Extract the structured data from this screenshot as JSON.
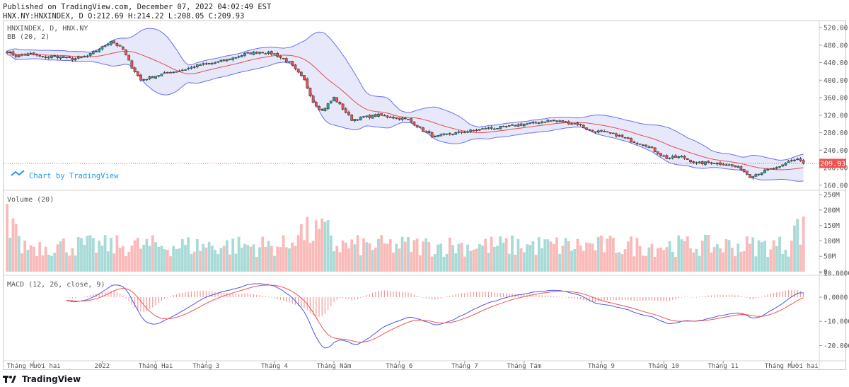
{
  "header": {
    "published": "Published on TradingView.com, December 07, 2022 04:02:49 EST",
    "ohlc": "HNX.NY:HNXINDEX, D O:212.69 H:214.22 L:208.05 C:209.93"
  },
  "legend": {
    "symbol": "HNXINDEX, D, HNX.NY",
    "bb": "BB (20, 2)",
    "volume": "Volume (20)",
    "macd": "MACD (12, 26, close, 9)"
  },
  "watermark": "Chart by TradingView",
  "last_price_label": "209.93",
  "footer": {
    "brand": "TradingView"
  },
  "colors": {
    "up": "#26a69a",
    "down": "#ef5350",
    "bb_band": "#6a6ff0",
    "bb_basis": "#e05050",
    "bb_fill": "#7b7fe0",
    "macd_line": "#4a55e8",
    "signal_line": "#ef5350"
  },
  "chart_data": [
    {
      "type": "candlestick",
      "title": "HNXINDEX, D, HNX.NY",
      "overlay": "Bollinger Bands (20, 2)",
      "ylim": [
        150,
        525
      ],
      "y_ticks": [
        520,
        480,
        440,
        400,
        360,
        320,
        280,
        240,
        200,
        160
      ],
      "x_ticks": [
        "Tháng Mười hai",
        "2022",
        "Tháng Hai",
        "Tháng 3",
        "Tháng 4",
        "Tháng Năm",
        "Tháng 6",
        "Tháng 7",
        "Tháng Tám",
        "Tháng 9",
        "Tháng 10",
        "Tháng 11",
        "Tháng Mười hai"
      ],
      "x_tick_bars": [
        9,
        32,
        50,
        67,
        90,
        110,
        132,
        154,
        174,
        200,
        221,
        241,
        264
      ],
      "close_anchors": [
        [
          0,
          465
        ],
        [
          3,
          455
        ],
        [
          8,
          460
        ],
        [
          12,
          452
        ],
        [
          16,
          455
        ],
        [
          22,
          448
        ],
        [
          27,
          455
        ],
        [
          32,
          475
        ],
        [
          35,
          490
        ],
        [
          39,
          470
        ],
        [
          42,
          430
        ],
        [
          45,
          400
        ],
        [
          50,
          410
        ],
        [
          55,
          418
        ],
        [
          60,
          425
        ],
        [
          65,
          435
        ],
        [
          70,
          440
        ],
        [
          75,
          448
        ],
        [
          80,
          460
        ],
        [
          85,
          465
        ],
        [
          90,
          460
        ],
        [
          95,
          440
        ],
        [
          100,
          400
        ],
        [
          103,
          350
        ],
        [
          106,
          330
        ],
        [
          110,
          360
        ],
        [
          113,
          335
        ],
        [
          116,
          310
        ],
        [
          120,
          315
        ],
        [
          125,
          320
        ],
        [
          130,
          315
        ],
        [
          135,
          310
        ],
        [
          140,
          285
        ],
        [
          144,
          270
        ],
        [
          147,
          275
        ],
        [
          152,
          280
        ],
        [
          157,
          285
        ],
        [
          162,
          290
        ],
        [
          167,
          292
        ],
        [
          172,
          298
        ],
        [
          177,
          302
        ],
        [
          182,
          308
        ],
        [
          187,
          305
        ],
        [
          192,
          300
        ],
        [
          196,
          285
        ],
        [
          200,
          282
        ],
        [
          205,
          275
        ],
        [
          210,
          262
        ],
        [
          215,
          252
        ],
        [
          218,
          238
        ],
        [
          222,
          222
        ],
        [
          227,
          225
        ],
        [
          232,
          210
        ],
        [
          237,
          212
        ],
        [
          242,
          208
        ],
        [
          247,
          198
        ],
        [
          250,
          180
        ],
        [
          253,
          188
        ],
        [
          256,
          195
        ],
        [
          260,
          200
        ],
        [
          263,
          215
        ],
        [
          266,
          220
        ],
        [
          268,
          212
        ]
      ],
      "last_close": 209.93
    },
    {
      "type": "bar",
      "title": "Volume (20)",
      "unit": "shares",
      "ylim": [
        0,
        255000000
      ],
      "y_ticks": [
        "250M",
        "200M",
        "150M",
        "100M",
        "50M",
        "0"
      ],
      "base_level": 80000000
    },
    {
      "type": "line",
      "title": "MACD (12, 26, close, 9)",
      "series": [
        "MACD",
        "Signal",
        "Histogram"
      ],
      "ylim": [
        -26,
        11
      ],
      "y_ticks": [
        "10.0000",
        "0.0000",
        "-10.0000",
        "-20.0000"
      ]
    }
  ]
}
